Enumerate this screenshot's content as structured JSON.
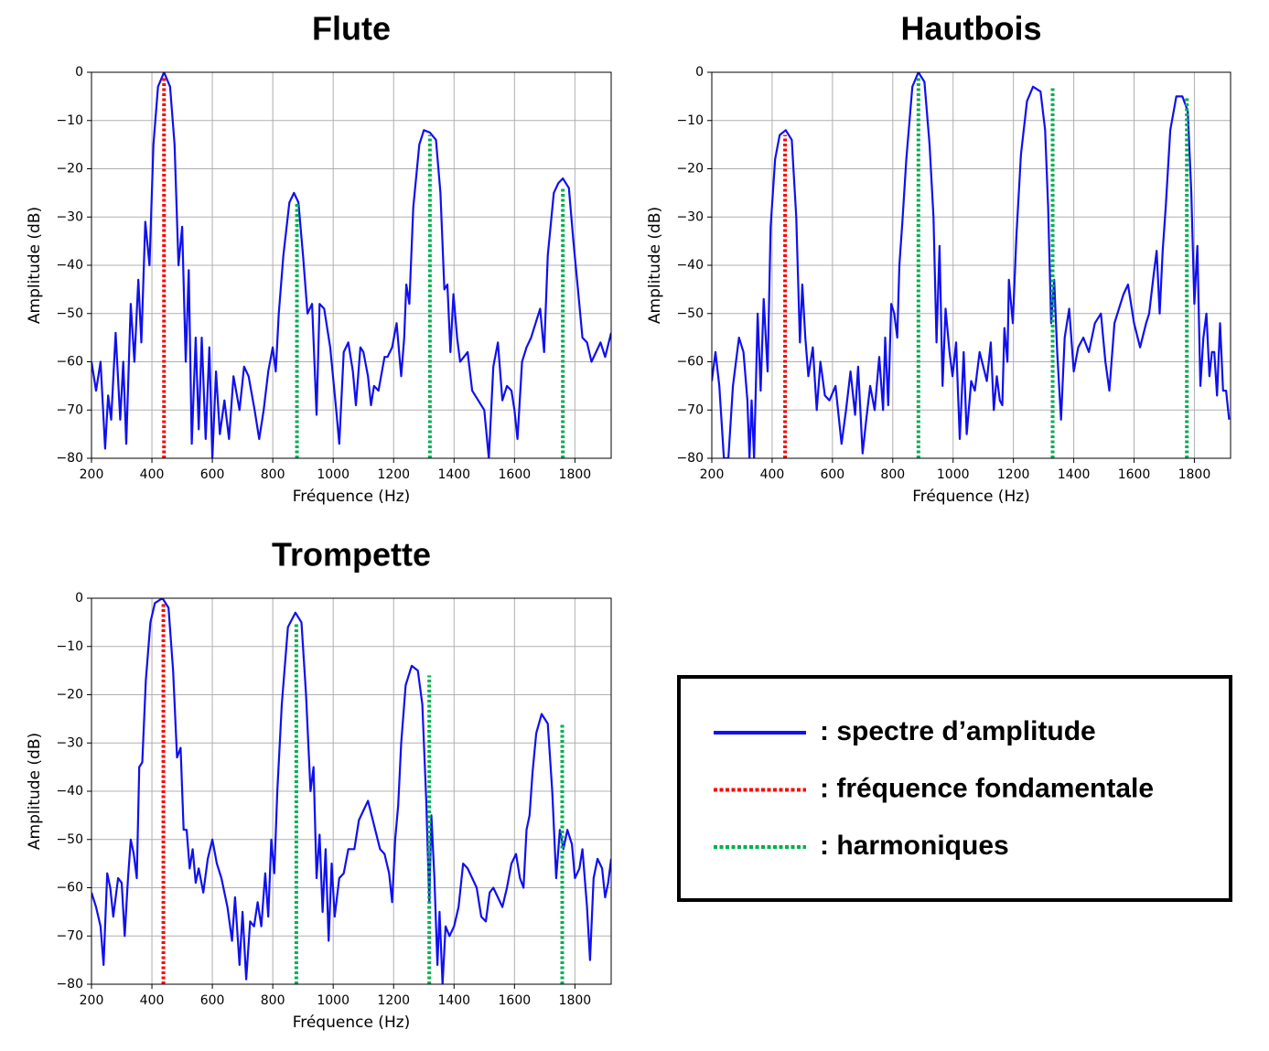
{
  "chart_data": [
    {
      "type": "line",
      "title": "Flute",
      "xlabel": "Fréquence (Hz)",
      "ylabel": "Amplitude (dB)",
      "xlim": [
        200,
        1920
      ],
      "ylim": [
        -80,
        0
      ],
      "grid": true,
      "xticks": [
        200,
        400,
        600,
        800,
        1000,
        1200,
        1400,
        1600,
        1800
      ],
      "yticks": [
        0,
        {
          "value": -10,
          "label": "−10"
        },
        {
          "value": -20,
          "label": "−20"
        },
        {
          "value": -30,
          "label": "−30"
        },
        {
          "value": -40,
          "label": "−40"
        },
        {
          "value": -50,
          "label": "−50"
        },
        {
          "value": -60,
          "label": "−60"
        },
        {
          "value": -70,
          "label": "−70"
        },
        {
          "value": -80,
          "label": "−80"
        }
      ],
      "series": [
        {
          "color": "#1010f0",
          "x": [
            200,
            215,
            230,
            245,
            255,
            265,
            280,
            295,
            305,
            315,
            330,
            342,
            355,
            365,
            378,
            392,
            405,
            420,
            440,
            460,
            475,
            488,
            500,
            512,
            522,
            532,
            545,
            555,
            565,
            578,
            590,
            600,
            612,
            625,
            640,
            655,
            670,
            690,
            705,
            720,
            740,
            755,
            770,
            785,
            800,
            810,
            820,
            835,
            855,
            870,
            885,
            900,
            915,
            930,
            945,
            955,
            970,
            990,
            1010,
            1020,
            1035,
            1050,
            1065,
            1075,
            1090,
            1100,
            1115,
            1125,
            1135,
            1150,
            1170,
            1180,
            1195,
            1210,
            1225,
            1235,
            1242,
            1252,
            1265,
            1285,
            1300,
            1320,
            1340,
            1355,
            1368,
            1378,
            1388,
            1398,
            1410,
            1420,
            1445,
            1460,
            1480,
            1500,
            1515,
            1530,
            1545,
            1560,
            1575,
            1590,
            1600,
            1610,
            1625,
            1640,
            1655,
            1670,
            1685,
            1698,
            1710,
            1730,
            1745,
            1760,
            1780,
            1795,
            1810,
            1825,
            1840,
            1855,
            1870,
            1885,
            1900,
            1920
          ],
          "values": [
            -60,
            -66,
            -60,
            -78,
            -67,
            -72,
            -54,
            -72,
            -60,
            -77,
            -48,
            -60,
            -43,
            -56,
            -31,
            -40,
            -15,
            -3,
            0,
            -3,
            -15,
            -40,
            -32,
            -60,
            -41,
            -77,
            -55,
            -74,
            -55,
            -76,
            -57,
            -80,
            -62,
            -75,
            -68,
            -76,
            -63,
            -70,
            -61,
            -63,
            -70,
            -76,
            -70,
            -62,
            -57,
            -62,
            -50,
            -38,
            -27,
            -25,
            -27,
            -38,
            -50,
            -48,
            -71,
            -48,
            -49,
            -57,
            -70,
            -77,
            -58,
            -56,
            -62,
            -69,
            -57,
            -58,
            -63,
            -69,
            -65,
            -66,
            -59,
            -59,
            -57,
            -52,
            -63,
            -55,
            -44,
            -48,
            -28,
            -15,
            -12,
            -12.5,
            -14,
            -25,
            -45,
            -44,
            -58,
            -46,
            -55,
            -60,
            -58,
            -66,
            -68,
            -70,
            -80,
            -61,
            -56,
            -68,
            -65,
            -66,
            -70,
            -76,
            -60,
            -57,
            -55,
            -52,
            -49,
            -58,
            -38,
            -25,
            -23,
            -22,
            -24,
            -35,
            -45,
            -55,
            -56,
            -60,
            -58,
            -56,
            -59,
            -54
          ]
        }
      ],
      "fundamental": {
        "color": "#ff0000",
        "x": [
          440
        ],
        "values": [
          -1
        ]
      },
      "harmonics": {
        "color": "#00b050",
        "x": [
          880,
          1320,
          1760
        ],
        "values": [
          -27,
          -13,
          -24
        ]
      }
    },
    {
      "type": "line",
      "title": "Hautbois",
      "xlabel": "Fréquence (Hz)",
      "ylabel": "Amplitude (dB)",
      "xlim": [
        200,
        1920
      ],
      "ylim": [
        -80,
        0
      ],
      "grid": true,
      "xticks": [
        200,
        400,
        600,
        800,
        1000,
        1200,
        1400,
        1600,
        1800
      ],
      "yticks": [
        0,
        {
          "value": -10,
          "label": "−10"
        },
        {
          "value": -20,
          "label": "−20"
        },
        {
          "value": -30,
          "label": "−30"
        },
        {
          "value": -40,
          "label": "−40"
        },
        {
          "value": -50,
          "label": "−50"
        },
        {
          "value": -60,
          "label": "−60"
        },
        {
          "value": -70,
          "label": "−70"
        },
        {
          "value": -80,
          "label": "−80"
        }
      ],
      "series": [
        {
          "color": "#1010f0",
          "x": [
            200,
            212,
            225,
            240,
            255,
            270,
            290,
            305,
            318,
            325,
            332,
            340,
            352,
            362,
            372,
            385,
            395,
            410,
            425,
            445,
            465,
            480,
            492,
            500,
            510,
            520,
            535,
            548,
            560,
            575,
            590,
            610,
            630,
            645,
            660,
            675,
            685,
            700,
            712,
            725,
            740,
            755,
            768,
            775,
            785,
            795,
            805,
            815,
            822,
            832,
            845,
            865,
            885,
            905,
            922,
            935,
            945,
            955,
            965,
            975,
            988,
            998,
            1010,
            1022,
            1035,
            1045,
            1060,
            1072,
            1088,
            1100,
            1112,
            1125,
            1135,
            1145,
            1155,
            1163,
            1170,
            1180,
            1185,
            1198,
            1210,
            1225,
            1245,
            1265,
            1290,
            1305,
            1315,
            1325,
            1335,
            1345,
            1358,
            1370,
            1385,
            1400,
            1415,
            1432,
            1450,
            1470,
            1490,
            1505,
            1518,
            1535,
            1550,
            1565,
            1580,
            1600,
            1620,
            1640,
            1650,
            1665,
            1675,
            1685,
            1695,
            1705,
            1720,
            1740,
            1760,
            1778,
            1790,
            1800,
            1810,
            1820,
            1830,
            1840,
            1850,
            1858,
            1866,
            1875,
            1885,
            1895,
            1905,
            1915
          ],
          "values": [
            -64,
            -58,
            -65,
            -80,
            -80,
            -65,
            -55,
            -58,
            -68,
            -80,
            -68,
            -80,
            -50,
            -66,
            -47,
            -62,
            -32,
            -18,
            -13,
            -12,
            -14,
            -30,
            -56,
            -44,
            -55,
            -63,
            -57,
            -70,
            -60,
            -67,
            -68,
            -65,
            -77,
            -70,
            -62,
            -71,
            -61,
            -79,
            -72,
            -65,
            -70,
            -59,
            -70,
            -55,
            -69,
            -48,
            -50,
            -55,
            -40,
            -31,
            -18,
            -3,
            0,
            -2,
            -15,
            -30,
            -56,
            -36,
            -65,
            -49,
            -58,
            -63,
            -56,
            -76,
            -58,
            -75,
            -64,
            -66,
            -58,
            -61,
            -64,
            -56,
            -70,
            -63,
            -68,
            -69,
            -53,
            -60,
            -43,
            -52,
            -34,
            -17,
            -6,
            -3,
            -4,
            -12,
            -28,
            -52,
            -43,
            -58,
            -72,
            -55,
            -49,
            -62,
            -57,
            -55,
            -58,
            -52,
            -50,
            -60,
            -66,
            -52,
            -49,
            -46,
            -44,
            -52,
            -57,
            -52,
            -50,
            -42,
            -37,
            -50,
            -37,
            -28,
            -12,
            -5,
            -5,
            -8,
            -25,
            -48,
            -36,
            -65,
            -55,
            -50,
            -63,
            -58,
            -58,
            -67,
            -52,
            -66,
            -66,
            -72
          ]
        }
      ],
      "fundamental": {
        "color": "#ff0000",
        "x": [
          443
        ],
        "values": [
          -13
        ]
      },
      "harmonics": {
        "color": "#00b050",
        "x": [
          885,
          1330,
          1775
        ],
        "values": [
          -1,
          -3,
          -5
        ]
      }
    },
    {
      "type": "line",
      "title": "Trompette",
      "xlabel": "Fréquence (Hz)",
      "ylabel": "Amplitude (dB)",
      "xlim": [
        200,
        1920
      ],
      "ylim": [
        -80,
        0
      ],
      "grid": true,
      "xticks": [
        200,
        400,
        600,
        800,
        1000,
        1200,
        1400,
        1600,
        1800
      ],
      "yticks": [
        0,
        {
          "value": -10,
          "label": "−10"
        },
        {
          "value": -20,
          "label": "−20"
        },
        {
          "value": -30,
          "label": "−30"
        },
        {
          "value": -40,
          "label": "−40"
        },
        {
          "value": -50,
          "label": "−50"
        },
        {
          "value": -60,
          "label": "−60"
        },
        {
          "value": -70,
          "label": "−70"
        },
        {
          "value": -80,
          "label": "−80"
        }
      ],
      "series": [
        {
          "color": "#1010f0",
          "x": [
            200,
            215,
            230,
            240,
            252,
            262,
            272,
            288,
            300,
            310,
            320,
            330,
            340,
            350,
            358,
            368,
            380,
            395,
            410,
            435,
            455,
            470,
            483,
            495,
            505,
            515,
            525,
            535,
            545,
            555,
            570,
            585,
            600,
            615,
            630,
            650,
            665,
            675,
            690,
            700,
            712,
            725,
            738,
            750,
            762,
            775,
            785,
            795,
            805,
            815,
            830,
            850,
            875,
            895,
            910,
            925,
            935,
            945,
            955,
            965,
            975,
            985,
            995,
            1005,
            1020,
            1035,
            1050,
            1070,
            1085,
            1100,
            1115,
            1135,
            1155,
            1170,
            1185,
            1195,
            1205,
            1215,
            1225,
            1240,
            1260,
            1280,
            1295,
            1308,
            1318,
            1325,
            1335,
            1345,
            1352,
            1362,
            1372,
            1385,
            1400,
            1415,
            1430,
            1445,
            1460,
            1475,
            1490,
            1505,
            1518,
            1530,
            1545,
            1560,
            1575,
            1590,
            1605,
            1618,
            1630,
            1640,
            1650,
            1660,
            1672,
            1690,
            1710,
            1725,
            1738,
            1750,
            1762,
            1775,
            1790,
            1800,
            1815,
            1825,
            1840,
            1850,
            1862,
            1875,
            1890,
            1900,
            1910,
            1920
          ],
          "values": [
            -61,
            -64,
            -68,
            -76,
            -57,
            -60,
            -66,
            -58,
            -59,
            -70,
            -59,
            -50,
            -53,
            -58,
            -35,
            -34,
            -17,
            -5,
            -1,
            0,
            -2,
            -15,
            -33,
            -31,
            -48,
            -48,
            -56,
            -52,
            -59,
            -56,
            -61,
            -54,
            -50,
            -55,
            -58,
            -64,
            -71,
            -62,
            -76,
            -65,
            -79,
            -67,
            -68,
            -63,
            -68,
            -57,
            -66,
            -50,
            -57,
            -40,
            -22,
            -6,
            -3,
            -5,
            -20,
            -40,
            -35,
            -58,
            -49,
            -65,
            -52,
            -71,
            -55,
            -66,
            -58,
            -57,
            -52,
            -52,
            -46,
            -44,
            -42,
            -47,
            -52,
            -53,
            -57,
            -63,
            -50,
            -43,
            -30,
            -18,
            -14,
            -15,
            -22,
            -42,
            -63,
            -45,
            -58,
            -76,
            -65,
            -80,
            -68,
            -70,
            -68,
            -64,
            -55,
            -56,
            -58,
            -60,
            -66,
            -67,
            -61,
            -60,
            -62,
            -64,
            -60,
            -55,
            -53,
            -58,
            -60,
            -48,
            -45,
            -36,
            -28,
            -24,
            -26,
            -40,
            -58,
            -48,
            -52,
            -48,
            -51,
            -58,
            -56,
            -52,
            -64,
            -75,
            -58,
            -54,
            -56,
            -62,
            -59,
            -54
          ]
        }
      ],
      "fundamental": {
        "color": "#ff0000",
        "x": [
          438
        ],
        "values": [
          -1
        ]
      },
      "harmonics": {
        "color": "#00b050",
        "x": [
          878,
          1318,
          1758
        ],
        "values": [
          -5,
          -16,
          -26
        ]
      }
    }
  ],
  "legend": [
    {
      "label": ": spectre d’amplitude",
      "color": "#1010f0",
      "style": "solid"
    },
    {
      "label": ": fréquence fondamentale",
      "color": "#ff0000",
      "style": "dotted"
    },
    {
      "label": ": harmoniques",
      "color": "#00b050",
      "style": "dotted"
    }
  ]
}
